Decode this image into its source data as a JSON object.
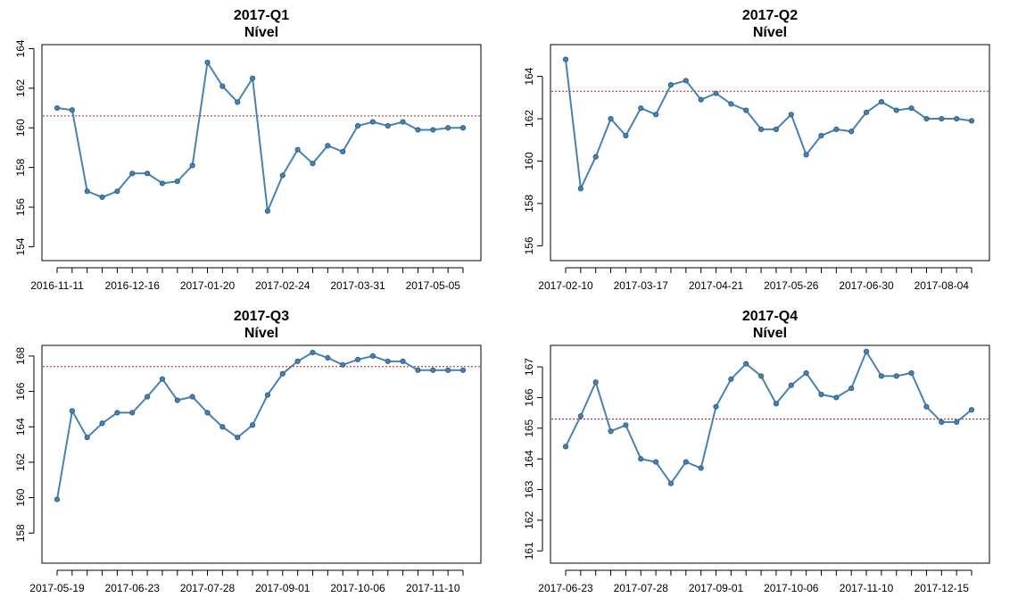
{
  "colors": {
    "series": "#4682b4",
    "reference_line": "#b22222",
    "axis": "#000000"
  },
  "chart_data": [
    {
      "type": "line",
      "title": "2017-Q1",
      "subtitle": "Nível",
      "ylim": [
        153.3,
        164.2
      ],
      "yticks": [
        154,
        156,
        158,
        160,
        162,
        164
      ],
      "reference_line": 160.6,
      "x_tick_labels": [
        "2016-11-11",
        "2016-12-16",
        "2017-01-20",
        "2017-02-24",
        "2017-03-31",
        "2017-05-05"
      ],
      "label_every": 5,
      "values": [
        161.0,
        160.9,
        156.8,
        156.5,
        156.8,
        157.7,
        157.7,
        157.2,
        157.3,
        158.1,
        163.3,
        162.1,
        161.3,
        162.5,
        155.8,
        157.6,
        158.9,
        158.2,
        159.1,
        158.8,
        160.1,
        160.3,
        160.1,
        160.3,
        159.9,
        159.9,
        160.0,
        160.0
      ]
    },
    {
      "type": "line",
      "title": "2017-Q2",
      "subtitle": "Nível",
      "ylim": [
        155.3,
        165.5
      ],
      "yticks": [
        156,
        158,
        160,
        162,
        164
      ],
      "reference_line": 163.3,
      "x_tick_labels": [
        "2017-02-10",
        "2017-03-17",
        "2017-04-21",
        "2017-05-26",
        "2017-06-30",
        "2017-08-04"
      ],
      "label_every": 5,
      "values": [
        164.8,
        158.7,
        160.2,
        162.0,
        161.2,
        162.5,
        162.2,
        163.6,
        163.8,
        162.9,
        163.2,
        162.7,
        162.4,
        161.5,
        161.5,
        162.2,
        160.3,
        161.2,
        161.5,
        161.4,
        162.3,
        162.8,
        162.4,
        162.5,
        162.0,
        162.0,
        162.0,
        161.9
      ]
    },
    {
      "type": "line",
      "title": "2017-Q3",
      "subtitle": "Nível",
      "ylim": [
        156.3,
        168.6
      ],
      "yticks": [
        158,
        160,
        162,
        164,
        166,
        168
      ],
      "reference_line": 167.4,
      "x_tick_labels": [
        "2017-05-19",
        "2017-06-23",
        "2017-07-28",
        "2017-09-01",
        "2017-10-06",
        "2017-11-10"
      ],
      "label_every": 5,
      "values": [
        159.9,
        164.9,
        163.4,
        164.2,
        164.8,
        164.8,
        165.7,
        166.7,
        165.5,
        165.7,
        164.8,
        164.0,
        163.4,
        164.1,
        165.8,
        167.0,
        167.7,
        168.2,
        167.9,
        167.5,
        167.8,
        168.0,
        167.7,
        167.7,
        167.2,
        167.2,
        167.2,
        167.2
      ]
    },
    {
      "type": "line",
      "title": "2017-Q4",
      "subtitle": "Nível",
      "ylim": [
        160.6,
        167.7
      ],
      "yticks": [
        161,
        162,
        163,
        164,
        165,
        166,
        167
      ],
      "reference_line": 165.3,
      "x_tick_labels": [
        "2017-06-23",
        "2017-07-28",
        "2017-09-01",
        "2017-10-06",
        "2017-11-10",
        "2017-12-15"
      ],
      "label_every": 5,
      "values": [
        164.4,
        165.4,
        166.5,
        164.9,
        165.1,
        164.0,
        163.9,
        163.2,
        163.9,
        163.7,
        165.7,
        166.6,
        167.1,
        166.7,
        165.8,
        166.4,
        166.8,
        166.1,
        166.0,
        166.3,
        167.5,
        166.7,
        166.7,
        166.8,
        165.7,
        165.2,
        165.2,
        165.6
      ]
    }
  ]
}
